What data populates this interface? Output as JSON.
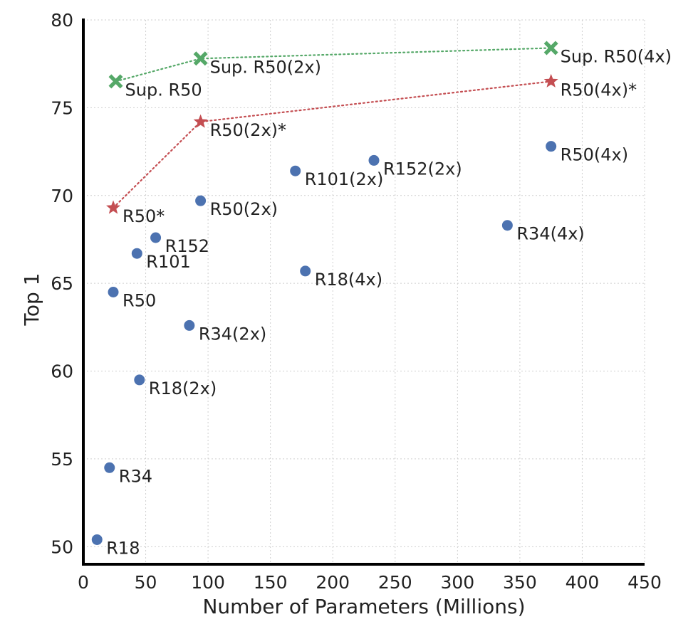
{
  "chart_data": {
    "type": "scatter",
    "title": "",
    "xlabel": "Number of Parameters (Millions)",
    "ylabel": "Top 1",
    "xlim": [
      0,
      450
    ],
    "ylim": [
      49,
      80
    ],
    "xticks": [
      0,
      50,
      100,
      150,
      200,
      250,
      300,
      350,
      400,
      450
    ],
    "yticks": [
      50,
      55,
      60,
      65,
      70,
      75,
      80
    ],
    "grid": true,
    "legend": "none",
    "series": [
      {
        "marker": "circle",
        "color": "#4c72b0",
        "connected": false,
        "points": [
          {
            "label": "R18",
            "x": 11,
            "y": 50.4
          },
          {
            "label": "R34",
            "x": 21,
            "y": 54.5
          },
          {
            "label": "R50",
            "x": 24,
            "y": 64.5
          },
          {
            "label": "R101",
            "x": 43,
            "y": 66.7
          },
          {
            "label": "R152",
            "x": 58,
            "y": 67.6
          },
          {
            "label": "R18(2x)",
            "x": 45,
            "y": 59.5
          },
          {
            "label": "R34(2x)",
            "x": 85,
            "y": 62.6
          },
          {
            "label": "R50(2x)",
            "x": 94,
            "y": 69.7
          },
          {
            "label": "R101(2x)",
            "x": 170,
            "y": 71.4
          },
          {
            "label": "R152(2x)",
            "x": 233,
            "y": 72.0
          },
          {
            "label": "R18(4x)",
            "x": 178,
            "y": 65.7
          },
          {
            "label": "R34(4x)",
            "x": 340,
            "y": 68.3
          },
          {
            "label": "R50(4x)",
            "x": 375,
            "y": 72.8
          }
        ]
      },
      {
        "marker": "star",
        "color": "#c44e52",
        "connected": true,
        "points": [
          {
            "label": "R50*",
            "x": 24,
            "y": 69.3
          },
          {
            "label": "R50(2x)*",
            "x": 94,
            "y": 74.2
          },
          {
            "label": "R50(4x)*",
            "x": 375,
            "y": 76.5
          }
        ]
      },
      {
        "marker": "x",
        "color": "#55a868",
        "connected": true,
        "points": [
          {
            "label": "Sup. R50",
            "x": 26,
            "y": 76.5
          },
          {
            "label": "Sup. R50(2x)",
            "x": 94,
            "y": 77.8
          },
          {
            "label": "Sup. R50(4x)",
            "x": 375,
            "y": 78.4
          }
        ]
      }
    ]
  }
}
